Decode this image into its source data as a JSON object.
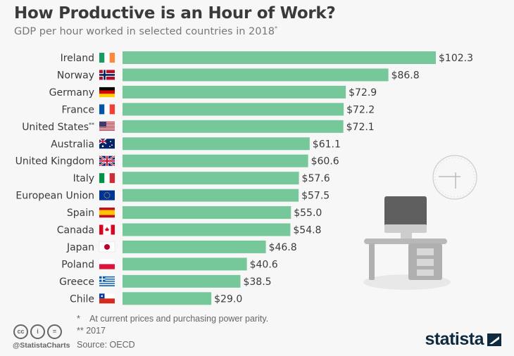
{
  "title": "How Productive is an Hour of Work?",
  "subtitle": "GDP per hour worked in selected countries in 2018",
  "subtitle_marker": "*",
  "colors": {
    "bar": "#76c799",
    "text": "#3a3a3a",
    "brand": "#0f2a3f"
  },
  "chart_data": {
    "type": "bar",
    "orientation": "horizontal",
    "title": "How Productive is an Hour of Work?",
    "categories": [
      "Ireland",
      "Norway",
      "Germany",
      "France",
      "United States**",
      "Australia",
      "United Kingdom",
      "Italy",
      "European Union",
      "Spain",
      "Canada",
      "Japan",
      "Poland",
      "Greece",
      "Chile"
    ],
    "flags": [
      "ie",
      "no",
      "de",
      "fr",
      "us",
      "au",
      "gb",
      "it",
      "eu",
      "es",
      "ca",
      "jp",
      "pl",
      "gr",
      "cl"
    ],
    "values": [
      102.3,
      86.8,
      72.9,
      72.2,
      72.1,
      61.1,
      60.6,
      57.6,
      57.5,
      55.0,
      54.8,
      46.8,
      40.6,
      38.5,
      29.0
    ],
    "labels": [
      "$102.3",
      "$86.8",
      "$72.9",
      "$72.2",
      "$72.1",
      "$61.1",
      "$60.6",
      "$57.6",
      "$57.5",
      "$55.0",
      "$54.8",
      "$46.8",
      "$40.6",
      "$38.5",
      "$29.0"
    ],
    "unit": "USD",
    "xlim": [
      0,
      102.3
    ]
  },
  "footer": {
    "note1": "*    At current prices and purchasing power parity.",
    "note2": "** 2017",
    "source": "Source: OECD",
    "handle": "@StatistaCharts",
    "brand": "statista",
    "cc_icons": [
      "cc",
      "i",
      "="
    ]
  }
}
